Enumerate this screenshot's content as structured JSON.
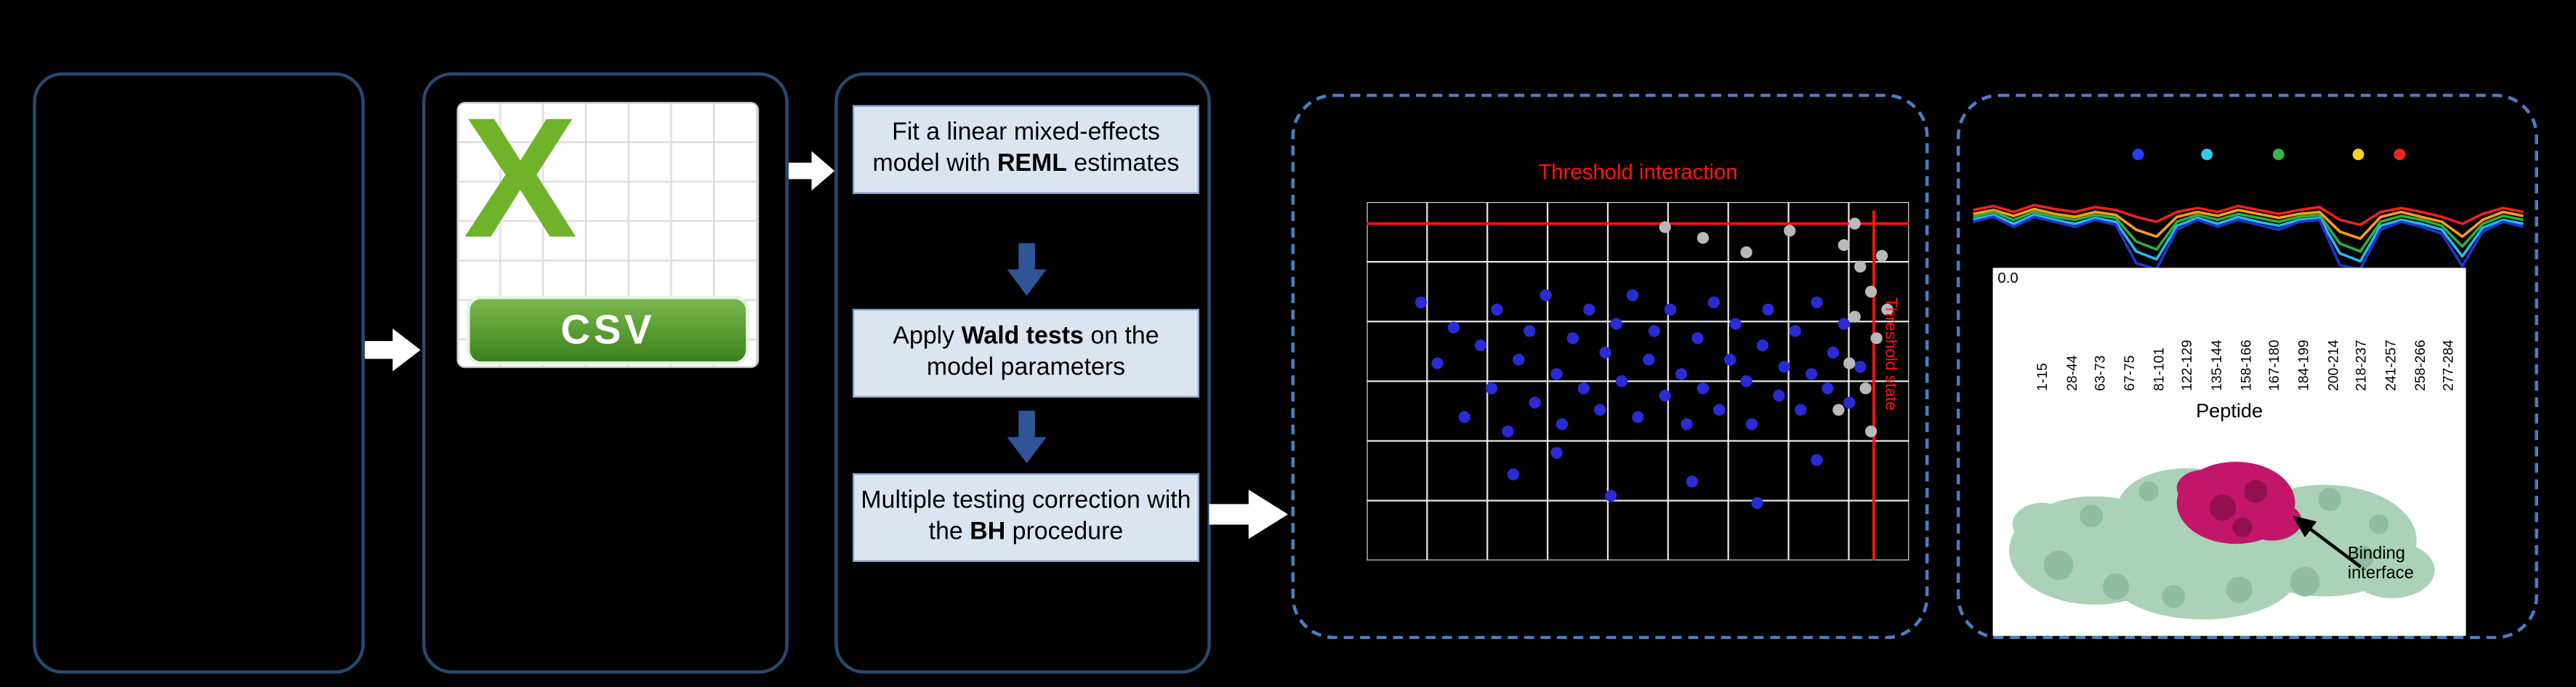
{
  "colors": {
    "background": "#000000",
    "panel_border_solid": "#29496f",
    "panel_border_dashed": "#4d7cc1",
    "step_box_fill": "#dbe5f2",
    "flow_arrow_white": "#ffffff",
    "flow_arrow_blue": "#2f5597",
    "threshold_red": "#ff1414",
    "csv_green": "#6fb32a",
    "protein_green": "#abd1b6",
    "binding_magenta": "#c2166b"
  },
  "csv_icon": {
    "letter": "X",
    "label": "CSV"
  },
  "steps": [
    {
      "pre": "Fit a linear mixed-effects model with ",
      "bold": "REML",
      "post": " estimates"
    },
    {
      "pre": "Apply ",
      "bold": "Wald tests",
      "post": " on the model parameters"
    },
    {
      "pre": "Multiple testing correction with the ",
      "bold": "BH",
      "post": " procedure"
    }
  ],
  "structure": {
    "label": "Binding interface"
  },
  "chart_data": [
    {
      "id": "threshold-scatter",
      "type": "scatter",
      "title": "Threshold interaction",
      "right_label": "Threshold state",
      "grid": true,
      "background": "#000000",
      "grid_color": "#ffffff",
      "threshold_color": "#ff1414",
      "threshold_interaction_pct": 6,
      "threshold_state_pct": 93.5,
      "xlim": [
        0,
        100
      ],
      "ylim": [
        0,
        100
      ],
      "series": [
        {
          "name": "significant-peptides",
          "color": "#2b2bd6",
          "points": [
            [
              10,
              28
            ],
            [
              13,
              45
            ],
            [
              16,
              35
            ],
            [
              18,
              60
            ],
            [
              21,
              40
            ],
            [
              23,
              52
            ],
            [
              24,
              30
            ],
            [
              26,
              64
            ],
            [
              28,
              44
            ],
            [
              30,
              36
            ],
            [
              31,
              56
            ],
            [
              33,
              26
            ],
            [
              35,
              48
            ],
            [
              36,
              62
            ],
            [
              38,
              38
            ],
            [
              40,
              52
            ],
            [
              41,
              30
            ],
            [
              43,
              58
            ],
            [
              44,
              42
            ],
            [
              46,
              34
            ],
            [
              47,
              50
            ],
            [
              49,
              26
            ],
            [
              50,
              60
            ],
            [
              52,
              44
            ],
            [
              53,
              36
            ],
            [
              55,
              54
            ],
            [
              56,
              30
            ],
            [
              58,
              48
            ],
            [
              59,
              62
            ],
            [
              61,
              38
            ],
            [
              62,
              52
            ],
            [
              64,
              28
            ],
            [
              65,
              58
            ],
            [
              67,
              44
            ],
            [
              68,
              34
            ],
            [
              70,
              50
            ],
            [
              71,
              62
            ],
            [
              73,
              40
            ],
            [
              74,
              30
            ],
            [
              76,
              54
            ],
            [
              77,
              46
            ],
            [
              79,
              36
            ],
            [
              80,
              58
            ],
            [
              82,
              48
            ],
            [
              83,
              28
            ],
            [
              85,
              52
            ],
            [
              86,
              42
            ],
            [
              88,
              34
            ],
            [
              89,
              56
            ],
            [
              91,
              46
            ],
            [
              27,
              76
            ],
            [
              45,
              82
            ],
            [
              60,
              78
            ],
            [
              72,
              84
            ],
            [
              35,
              70
            ],
            [
              83,
              72
            ]
          ]
        },
        {
          "name": "non-significant-peptides",
          "color": "#b9b9b9",
          "points": [
            [
              88,
              12
            ],
            [
              91,
              18
            ],
            [
              93,
              25
            ],
            [
              90,
              32
            ],
            [
              94,
              38
            ],
            [
              89,
              45
            ],
            [
              92,
              52
            ],
            [
              95,
              15
            ],
            [
              96,
              30
            ],
            [
              87,
              58
            ],
            [
              93,
              64
            ],
            [
              90,
              6
            ],
            [
              62,
              10
            ],
            [
              70,
              14
            ],
            [
              78,
              8
            ],
            [
              55,
              7
            ]
          ]
        }
      ]
    },
    {
      "id": "deuterium-uptake-lines",
      "type": "line",
      "xlabel": "Peptide",
      "y_tick_labels": [
        "0.0"
      ],
      "x_tick_labels": [
        "1-15",
        "28-44",
        "63-73",
        "67-75",
        "81-101",
        "122-129",
        "135-144",
        "158-166",
        "167-180",
        "184-199",
        "200-214",
        "218-237",
        "241-257",
        "258-266",
        "277-284"
      ],
      "marker_dots": [
        {
          "color": "#2a3cff",
          "fx": 0.3
        },
        {
          "color": "#35c9e9",
          "fx": 0.425
        },
        {
          "color": "#3cb34a",
          "fx": 0.555
        },
        {
          "color": "#f4d123",
          "fx": 0.7
        },
        {
          "color": "#f02323",
          "fx": 0.775
        }
      ],
      "series": [
        {
          "name": "line-1",
          "color": "#f02020",
          "values": [
            0.62,
            0.66,
            0.6,
            0.67,
            0.63,
            0.6,
            0.65,
            0.62,
            0.55,
            0.5,
            0.6,
            0.64,
            0.6,
            0.66,
            0.62,
            0.58,
            0.62,
            0.65,
            0.52,
            0.47,
            0.6,
            0.64,
            0.6,
            0.55,
            0.48,
            0.58,
            0.64,
            0.6
          ]
        },
        {
          "name": "line-2",
          "color": "#ff9c20",
          "values": [
            0.58,
            0.62,
            0.56,
            0.63,
            0.58,
            0.55,
            0.6,
            0.57,
            0.42,
            0.35,
            0.55,
            0.6,
            0.56,
            0.62,
            0.58,
            0.54,
            0.58,
            0.6,
            0.4,
            0.33,
            0.55,
            0.6,
            0.55,
            0.5,
            0.35,
            0.52,
            0.6,
            0.56
          ]
        },
        {
          "name": "line-3",
          "color": "#2fae3e",
          "values": [
            0.55,
            0.6,
            0.52,
            0.6,
            0.55,
            0.52,
            0.57,
            0.54,
            0.3,
            0.22,
            0.5,
            0.57,
            0.52,
            0.58,
            0.54,
            0.5,
            0.55,
            0.57,
            0.28,
            0.2,
            0.5,
            0.56,
            0.52,
            0.46,
            0.25,
            0.48,
            0.56,
            0.52
          ]
        },
        {
          "name": "line-4",
          "color": "#28b9e9",
          "values": [
            0.52,
            0.57,
            0.48,
            0.57,
            0.52,
            0.48,
            0.54,
            0.5,
            0.2,
            0.12,
            0.46,
            0.54,
            0.48,
            0.55,
            0.5,
            0.46,
            0.52,
            0.54,
            0.18,
            0.1,
            0.46,
            0.52,
            0.48,
            0.42,
            0.15,
            0.44,
            0.52,
            0.48
          ]
        },
        {
          "name": "line-5",
          "color": "#2333cf",
          "values": [
            0.5,
            0.55,
            0.45,
            0.55,
            0.5,
            0.45,
            0.52,
            0.47,
            0.08,
            0.02,
            0.42,
            0.52,
            0.45,
            0.52,
            0.47,
            0.42,
            0.5,
            0.52,
            0.06,
            0.02,
            0.42,
            0.5,
            0.45,
            0.38,
            0.05,
            0.4,
            0.5,
            0.45
          ]
        }
      ]
    }
  ]
}
